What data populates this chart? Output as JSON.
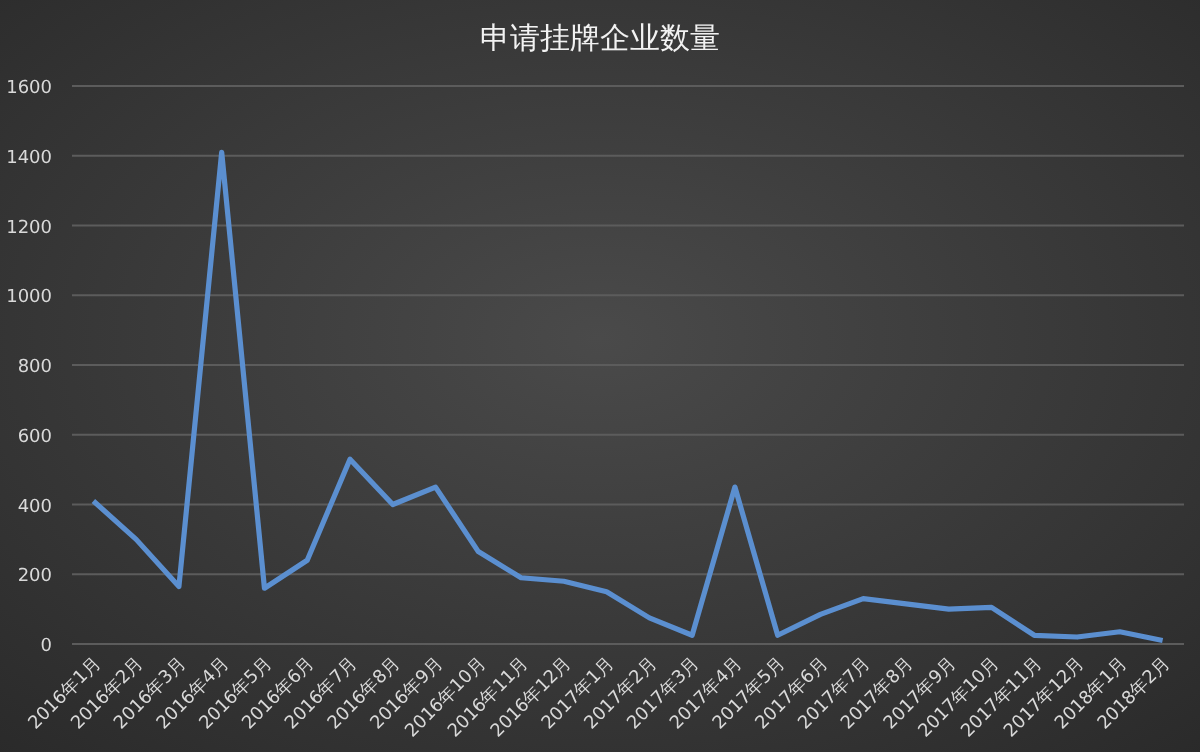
{
  "chart_data": {
    "type": "line",
    "title": "申请挂牌企业数量",
    "categories": [
      "2016年1月",
      "2016年2月",
      "2016年3月",
      "2016年4月",
      "2016年5月",
      "2016年6月",
      "2016年7月",
      "2016年8月",
      "2016年9月",
      "2016年10月",
      "2016年11月",
      "2016年12月",
      "2017年1月",
      "2017年2月",
      "2017年3月",
      "2017年4月",
      "2017年5月",
      "2017年6月",
      "2017年7月",
      "2017年8月",
      "2017年9月",
      "2017年10月",
      "2017年11月",
      "2017年12月",
      "2018年1月",
      "2018年2月"
    ],
    "series": [
      {
        "color": "#5b8fd0",
        "values": [
          410,
          300,
          165,
          1410,
          160,
          240,
          530,
          400,
          450,
          265,
          190,
          180,
          150,
          75,
          25,
          450,
          25,
          85,
          130,
          115,
          100,
          105,
          25,
          20,
          35,
          10
        ]
      }
    ],
    "ylim": [
      0,
      1600
    ],
    "yticks": [
      0,
      200,
      400,
      600,
      800,
      1000,
      1200,
      1400,
      1600
    ],
    "grid": "y",
    "marker": "none",
    "line_style": "solid"
  }
}
